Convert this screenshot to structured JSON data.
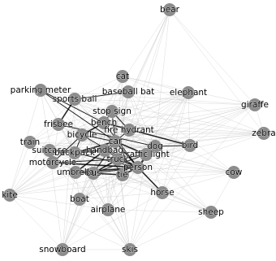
{
  "colors": {
    "node": "#8c8c8c",
    "edge_strong": "#000000",
    "edge_weak": "#bdbdbd",
    "background": "#ffffff"
  },
  "nodes": [
    {
      "id": "bear",
      "label": "bear"
    },
    {
      "id": "cat",
      "label": "cat"
    },
    {
      "id": "baseball-bat",
      "label": "baseball bat"
    },
    {
      "id": "parking-meter",
      "label": "parking meter"
    },
    {
      "id": "elephant",
      "label": "elephant"
    },
    {
      "id": "sports-ball",
      "label": "sports ball"
    },
    {
      "id": "giraffe",
      "label": "giraffe"
    },
    {
      "id": "stop-sign",
      "label": "stop sign"
    },
    {
      "id": "frisbee",
      "label": "frisbee"
    },
    {
      "id": "bench",
      "label": "bench"
    },
    {
      "id": "fire-hydrant",
      "label": "fire hydrant"
    },
    {
      "id": "zebra",
      "label": "zebra"
    },
    {
      "id": "bicycle",
      "label": "bicycle"
    },
    {
      "id": "car",
      "label": "car"
    },
    {
      "id": "train",
      "label": "train"
    },
    {
      "id": "dog",
      "label": "dog"
    },
    {
      "id": "bird",
      "label": "bird"
    },
    {
      "id": "suitcase",
      "label": "suitcase"
    },
    {
      "id": "backpack",
      "label": "backpack"
    },
    {
      "id": "handbag",
      "label": "handbag"
    },
    {
      "id": "traffic-light",
      "label": "traffic light"
    },
    {
      "id": "truck",
      "label": "truck"
    },
    {
      "id": "motorcycle",
      "label": "motorcycle"
    },
    {
      "id": "person",
      "label": "person"
    },
    {
      "id": "umbrella",
      "label": "umbrella"
    },
    {
      "id": "bus",
      "label": "bus"
    },
    {
      "id": "tie",
      "label": "tie"
    },
    {
      "id": "cow",
      "label": "cow"
    },
    {
      "id": "kite",
      "label": "kite"
    },
    {
      "id": "horse",
      "label": "horse"
    },
    {
      "id": "boat",
      "label": "boat"
    },
    {
      "id": "airplane",
      "label": "airplane"
    },
    {
      "id": "sheep",
      "label": "sheep"
    },
    {
      "id": "snowboard",
      "label": "snowboard"
    },
    {
      "id": "skis",
      "label": "skis"
    }
  ],
  "strong_edges": [
    [
      "person",
      "car"
    ],
    [
      "person",
      "bus"
    ],
    [
      "person",
      "truck"
    ],
    [
      "person",
      "tie"
    ],
    [
      "person",
      "handbag"
    ],
    [
      "person",
      "backpack"
    ],
    [
      "person",
      "umbrella"
    ],
    [
      "person",
      "traffic-light"
    ],
    [
      "person",
      "bicycle"
    ],
    [
      "person",
      "motorcycle"
    ],
    [
      "person",
      "bench"
    ],
    [
      "person",
      "dog"
    ],
    [
      "person",
      "horse"
    ],
    [
      "car",
      "truck"
    ],
    [
      "car",
      "bus"
    ],
    [
      "car",
      "traffic-light"
    ],
    [
      "car",
      "bicycle"
    ],
    [
      "car",
      "handbag"
    ],
    [
      "car",
      "backpack"
    ],
    [
      "car",
      "fire-hydrant"
    ],
    [
      "car",
      "stop-sign"
    ],
    [
      "truck",
      "bus"
    ],
    [
      "truck",
      "traffic-light"
    ],
    [
      "bus",
      "traffic-light"
    ],
    [
      "handbag",
      "backpack"
    ],
    [
      "handbag",
      "suitcase"
    ],
    [
      "backpack",
      "suitcase"
    ],
    [
      "umbrella",
      "handbag"
    ],
    [
      "bicycle",
      "motorcycle"
    ],
    [
      "bicycle",
      "backpack"
    ],
    [
      "bench",
      "bicycle"
    ],
    [
      "bench",
      "stop-sign"
    ],
    [
      "stop-sign",
      "fire-hydrant"
    ],
    [
      "frisbee",
      "sports-ball"
    ],
    [
      "sports-ball",
      "baseball-bat"
    ],
    [
      "frisbee",
      "dog"
    ],
    [
      "motorcycle",
      "suitcase"
    ],
    [
      "motorcycle",
      "truck"
    ],
    [
      "tie",
      "handbag"
    ],
    [
      "tie",
      "umbrella"
    ],
    [
      "dog",
      "bird"
    ],
    [
      "umbrella",
      "bus"
    ],
    [
      "bench",
      "bird"
    ],
    [
      "parking-meter",
      "car"
    ],
    [
      "parking-meter",
      "bench"
    ]
  ]
}
